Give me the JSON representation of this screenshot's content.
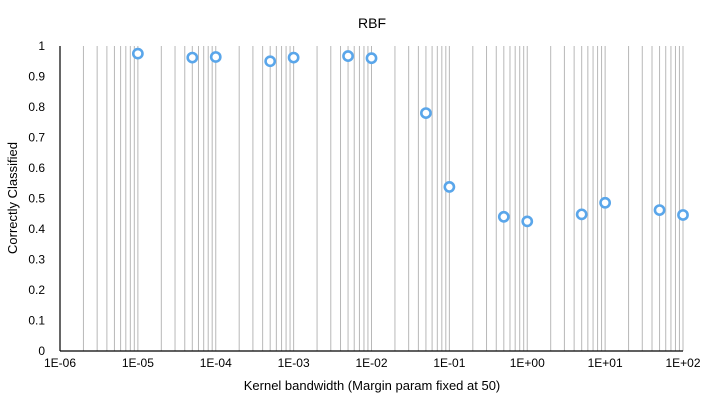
{
  "chart_data": {
    "type": "scatter",
    "title": "RBF",
    "xlabel": "Kernel bandwidth (Margin param fixed at 50)",
    "ylabel": "Correctly Classified",
    "x_scale": "log",
    "xlim": [
      1e-06,
      100
    ],
    "ylim": [
      0,
      1
    ],
    "x_tick_labels": [
      "1E-06",
      "1E-05",
      "1E-04",
      "1E-03",
      "1E-02",
      "1E-01",
      "1E+00",
      "1E+01",
      "1E+02"
    ],
    "y_tick_labels": [
      "0",
      "0.1",
      "0.2",
      "0.3",
      "0.4",
      "0.5",
      "0.6",
      "0.7",
      "0.8",
      "0.9",
      "1"
    ],
    "grid": "vertical log gridlines",
    "marker_color": "#5aa6ea",
    "points": [
      {
        "x": 1e-05,
        "y": 0.975
      },
      {
        "x": 5e-05,
        "y": 0.962
      },
      {
        "x": 0.0001,
        "y": 0.964
      },
      {
        "x": 0.0005,
        "y": 0.95
      },
      {
        "x": 0.001,
        "y": 0.962
      },
      {
        "x": 0.005,
        "y": 0.967
      },
      {
        "x": 0.01,
        "y": 0.96
      },
      {
        "x": 0.05,
        "y": 0.78
      },
      {
        "x": 0.1,
        "y": 0.538
      },
      {
        "x": 0.5,
        "y": 0.44
      },
      {
        "x": 1,
        "y": 0.425
      },
      {
        "x": 5,
        "y": 0.448
      },
      {
        "x": 10,
        "y": 0.486
      },
      {
        "x": 50,
        "y": 0.462
      },
      {
        "x": 100,
        "y": 0.446
      }
    ]
  }
}
